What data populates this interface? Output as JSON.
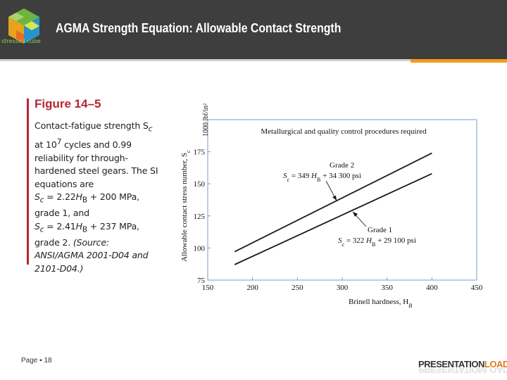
{
  "header": {
    "title": "AGMA Strength Equation: Allowable Contact Strength",
    "logo_text": "stressed cube",
    "colors": {
      "background": "#3e3e3e",
      "accent": "#f39a1e"
    }
  },
  "figure": {
    "label": "Figure 14–5",
    "caption_lines": [
      "Contact-fatigue strength S",
      "at 10",
      "reliability for through-",
      "hardened steel gears. The SI",
      "equations are",
      "S",
      "grade 1, and",
      "S",
      "grade 2. (Source:",
      "ANSI/AGMA 2001-D04 and",
      "2101-D04.)"
    ],
    "caption_parts": {
      "sub_c": "c",
      "exp": "7",
      "line2_rest": " cycles and 0.99",
      "eq1_mid": " = 2.22",
      "eq1_H": "H",
      "eq1_B": "B",
      "eq1_rest": " + 200 MPa,",
      "eq2_mid": " = 2.41",
      "eq2_H": "H",
      "eq2_B": "B",
      "eq2_rest": " + 237 MPa,",
      "grade2": "grade 2. ",
      "source1": "(Source:"
    }
  },
  "chart_data": {
    "type": "line",
    "title": "Metallurgical and quality control procedures required",
    "xlabel": "Brinell hardness, H",
    "xlabel_sub": "B",
    "ylabel": "Allowable contact stress number, S",
    "ylabel_sub": "c",
    "yunit": "1000 lbf/in²",
    "xlim": [
      150,
      450
    ],
    "ylim": [
      75,
      200
    ],
    "x_ticks": [
      150,
      200,
      250,
      300,
      350,
      400,
      450
    ],
    "y_ticks": [
      75,
      100,
      125,
      150,
      175
    ],
    "series": [
      {
        "name": "Grade 1",
        "equation": "S_c = 322 H_B + 29 100 psi",
        "x": [
          180,
          400
        ],
        "y": [
          87.06,
          157.9
        ]
      },
      {
        "name": "Grade 2",
        "equation": "S_c = 349 H_B + 34 300 psi",
        "x": [
          180,
          400
        ],
        "y": [
          97.12,
          173.9
        ]
      }
    ],
    "annotations": {
      "grade2_label": "Grade 2",
      "grade2_eq_prefix": "S",
      "grade2_eq_sub": "c",
      "grade2_eq_mid": " = 349 ",
      "grade2_eq_H": "H",
      "grade2_eq_B": "B",
      "grade2_eq_rest": " + 34 300 psi",
      "grade1_label": "Grade 1",
      "grade1_eq_prefix": "S",
      "grade1_eq_sub": "c",
      "grade1_eq_mid": " = 322 ",
      "grade1_eq_H": "H",
      "grade1_eq_B": "B",
      "grade1_eq_rest": " + 29 100 psi"
    },
    "grid": false,
    "frame_color": "#7a9cc6",
    "line_color": "#1a1a1a"
  },
  "footer": {
    "page_label": "Page ▪ 18",
    "brand_main": "PRESENTATION",
    "brand_accent": "LOAD"
  }
}
